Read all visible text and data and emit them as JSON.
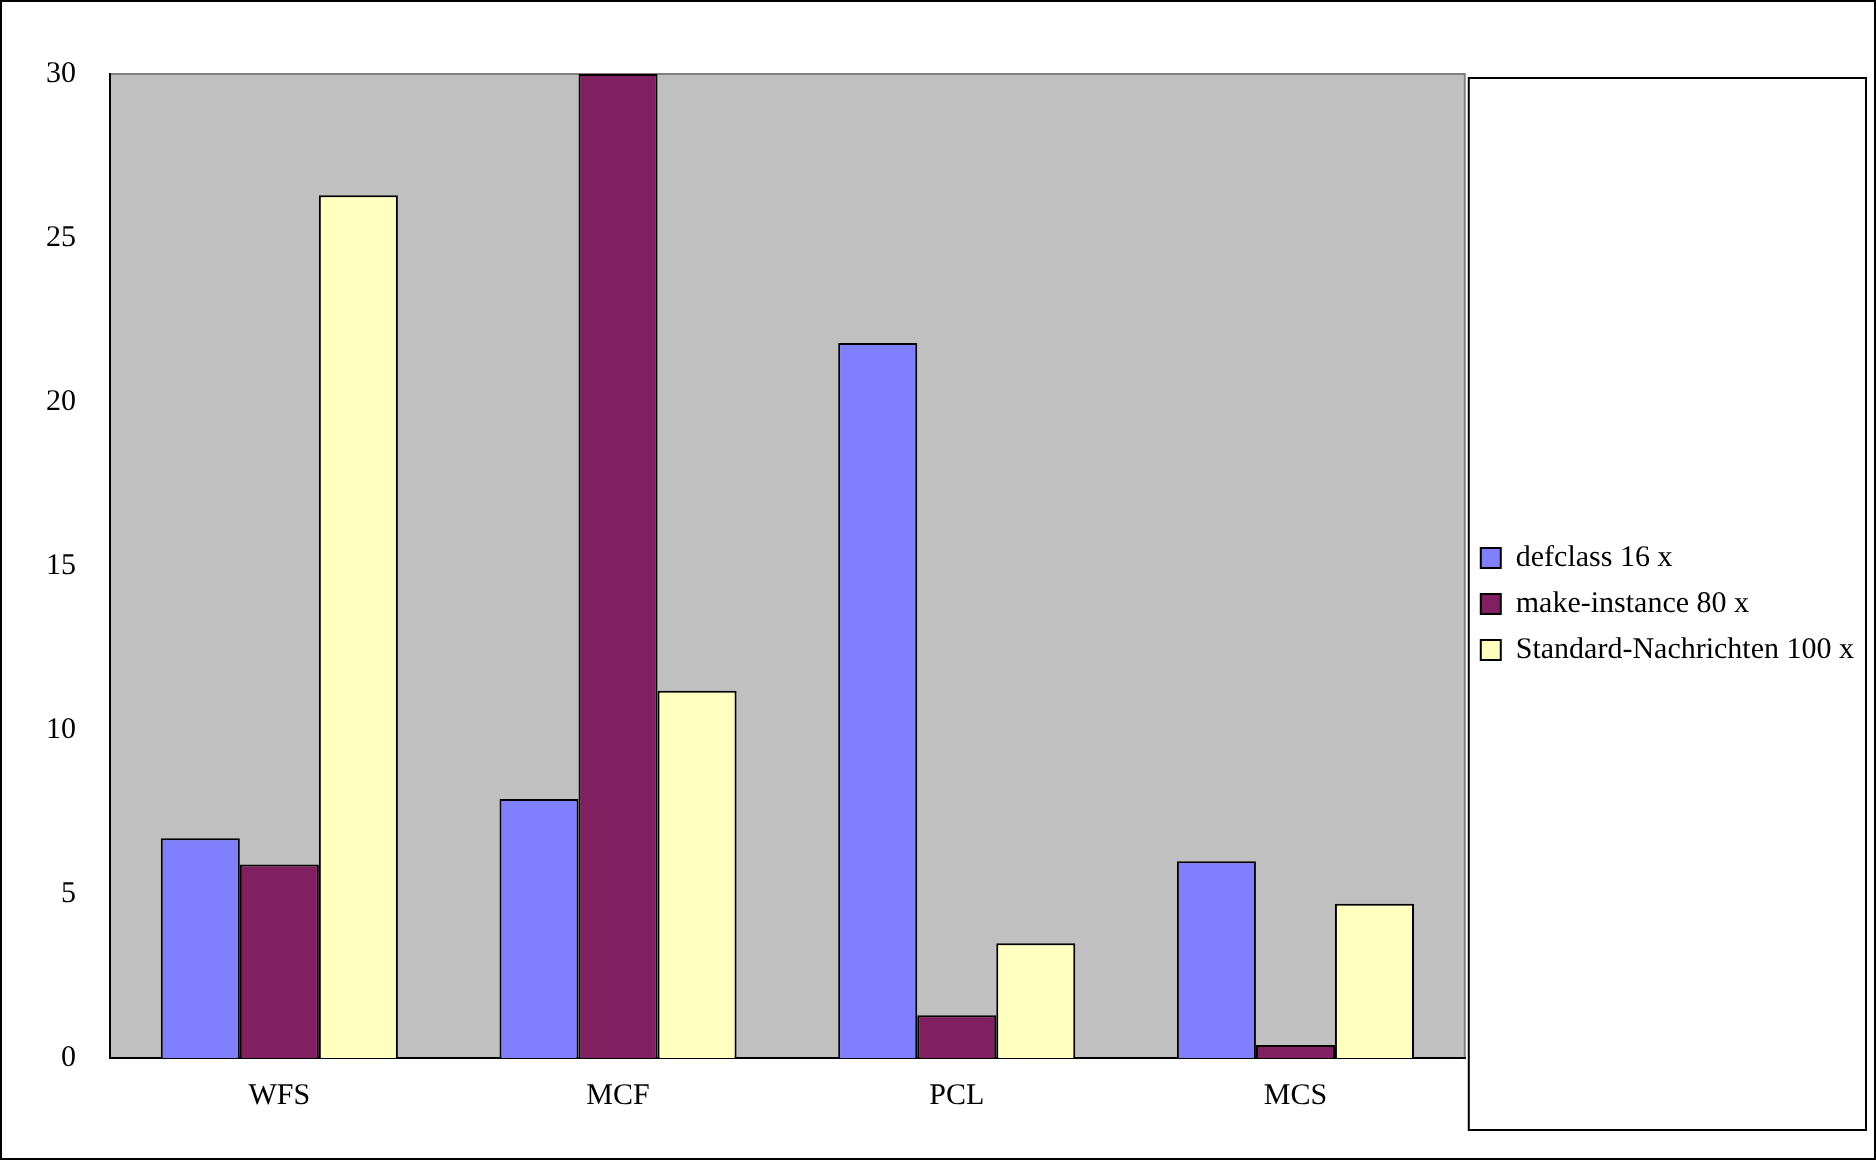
{
  "chart_data": {
    "type": "bar",
    "categories": [
      "WFS",
      "MCF",
      "PCL",
      "MCS"
    ],
    "series": [
      {
        "name": "defclass 16 x",
        "color": "#8080ff",
        "values": [
          6.7,
          7.9,
          21.8,
          6.0
        ]
      },
      {
        "name": "make-instance 80 x",
        "color": "#802060",
        "values": [
          5.9,
          30,
          1.3,
          0.4
        ]
      },
      {
        "name": "Standard-Nachrichten 100 x",
        "color": "#ffffc0",
        "values": [
          26.3,
          11.2,
          3.5,
          4.7
        ]
      }
    ],
    "ylim": [
      0,
      30
    ],
    "yticks": [
      0,
      5,
      10,
      15,
      20,
      25,
      30
    ],
    "grid": false,
    "legend": "right"
  }
}
